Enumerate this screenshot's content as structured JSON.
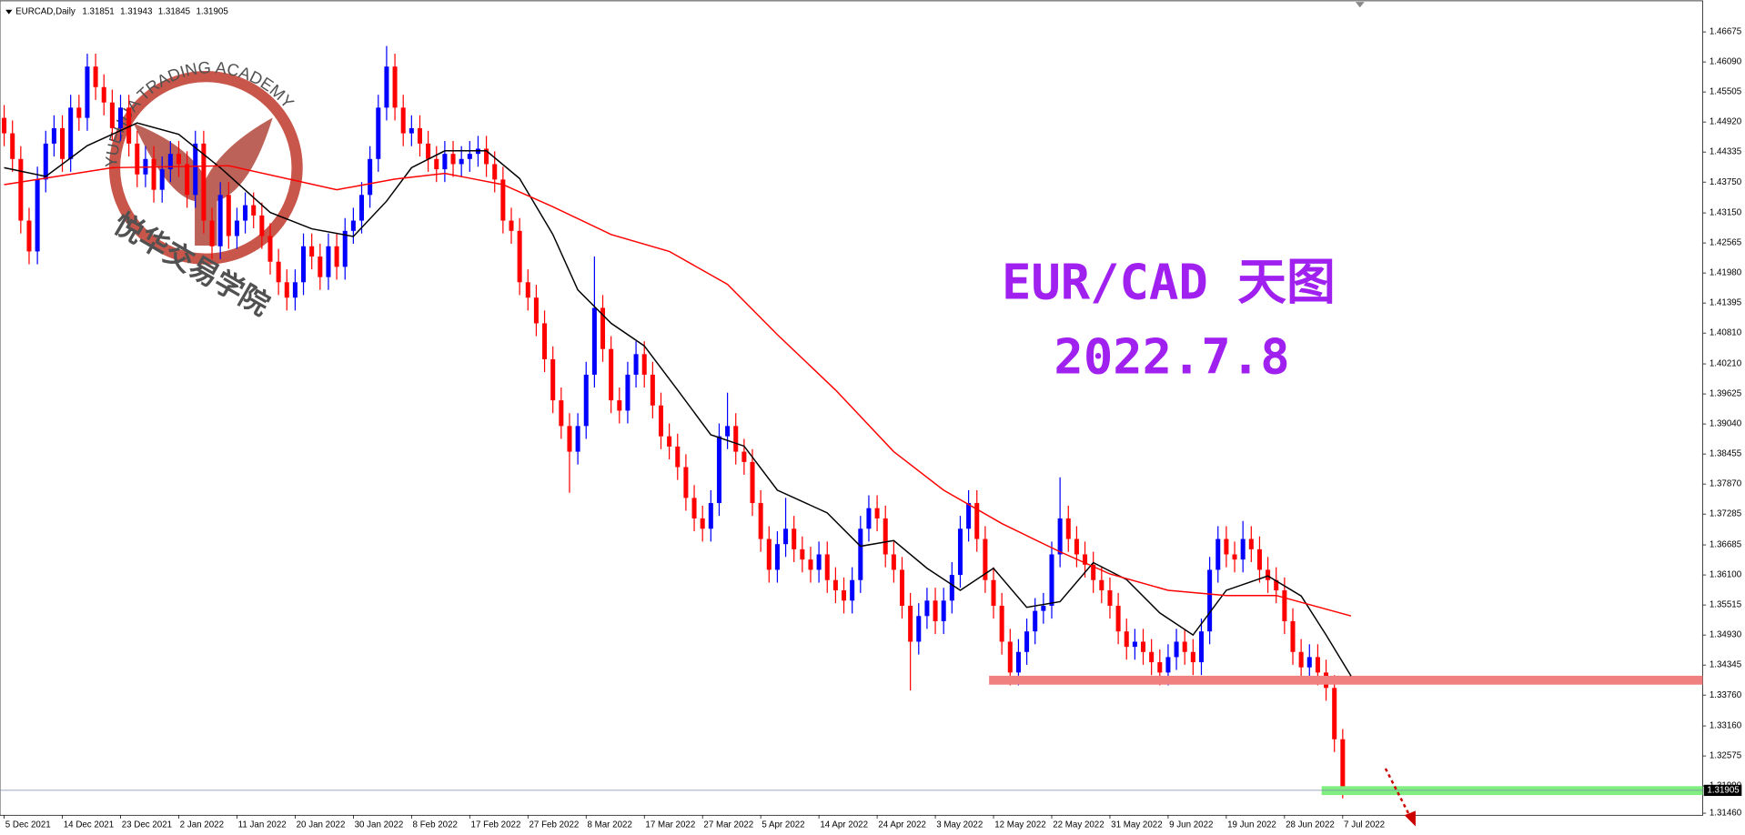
{
  "chart_data": {
    "type": "candlestick",
    "symbol": "EURCAD,Daily",
    "title": "EUR/CAD 天图",
    "subtitle": "2022.7.8",
    "watermark": {
      "text_top": "YUEHUA TRADING ACADEMY",
      "text_bottom": "悦华交易学院"
    },
    "up_color": "#0000ff",
    "down_color": "#ff0000",
    "xlim": [
      -0.5,
      204.3
    ],
    "ylim": [
      1.3142,
      1.4728
    ],
    "xticks": [
      {
        "value": 0,
        "label": "5 Dec 2021"
      },
      {
        "value": 7,
        "label": "14 Dec 2021"
      },
      {
        "value": 14,
        "label": "23 Dec 2021"
      },
      {
        "value": 21,
        "label": "2 Jan 2022"
      },
      {
        "value": 28,
        "label": "11 Jan 2022"
      },
      {
        "value": 35,
        "label": "20 Jan 2022"
      },
      {
        "value": 42,
        "label": "30 Jan 2022"
      },
      {
        "value": 49,
        "label": "8 Feb 2022"
      },
      {
        "value": 56,
        "label": "17 Feb 2022"
      },
      {
        "value": 63,
        "label": "27 Feb 2022"
      },
      {
        "value": 70,
        "label": "8 Mar 2022"
      },
      {
        "value": 77,
        "label": "17 Mar 2022"
      },
      {
        "value": 84,
        "label": "27 Mar 2022"
      },
      {
        "value": 91,
        "label": "5 Apr 2022"
      },
      {
        "value": 98,
        "label": "14 Apr 2022"
      },
      {
        "value": 105,
        "label": "24 Apr 2022"
      },
      {
        "value": 112,
        "label": "3 May 2022"
      },
      {
        "value": 119,
        "label": "12 May 2022"
      },
      {
        "value": 126,
        "label": "22 May 2022"
      },
      {
        "value": 133,
        "label": "31 May 2022"
      },
      {
        "value": 140,
        "label": "9 Jun 2022"
      },
      {
        "value": 147,
        "label": "19 Jun 2022"
      },
      {
        "value": 154,
        "label": "28 Jun 2022"
      },
      {
        "value": 161,
        "label": "7 Jul 2022"
      }
    ],
    "yticks": [
      {
        "value": 1.46675,
        "label": "1.46675"
      },
      {
        "value": 1.4609,
        "label": "1.46090"
      },
      {
        "value": 1.45505,
        "label": "1.45505"
      },
      {
        "value": 1.4492,
        "label": "1.44920"
      },
      {
        "value": 1.44335,
        "label": "1.44335"
      },
      {
        "value": 1.4375,
        "label": "1.43750"
      },
      {
        "value": 1.4315,
        "label": "1.43150"
      },
      {
        "value": 1.42565,
        "label": "1.42565"
      },
      {
        "value": 1.4198,
        "label": "1.41980"
      },
      {
        "value": 1.41395,
        "label": "1.41395"
      },
      {
        "value": 1.4081,
        "label": "1.40810"
      },
      {
        "value": 1.4021,
        "label": "1.40210"
      },
      {
        "value": 1.39625,
        "label": "1.39625"
      },
      {
        "value": 1.3904,
        "label": "1.39040"
      },
      {
        "value": 1.38455,
        "label": "1.38455"
      },
      {
        "value": 1.3787,
        "label": "1.37870"
      },
      {
        "value": 1.37285,
        "label": "1.37285"
      },
      {
        "value": 1.36685,
        "label": "1.36685"
      },
      {
        "value": 1.361,
        "label": "1.36100"
      },
      {
        "value": 1.35515,
        "label": "1.35515"
      },
      {
        "value": 1.3493,
        "label": "1.34930"
      },
      {
        "value": 1.34345,
        "label": "1.34345"
      },
      {
        "value": 1.3376,
        "label": "1.33760"
      },
      {
        "value": 1.3316,
        "label": "1.33160"
      },
      {
        "value": 1.32575,
        "label": "1.32575"
      },
      {
        "value": 1.3199,
        "label": "1.31990"
      },
      {
        "value": 1.3146,
        "label": "1.31460"
      }
    ],
    "candles": [
      [
        1.45,
        1.4525,
        1.4445,
        1.447
      ],
      [
        1.447,
        1.4495,
        1.4395,
        1.442
      ],
      [
        1.442,
        1.4445,
        1.4275,
        1.43
      ],
      [
        1.43,
        1.4325,
        1.4215,
        1.424
      ],
      [
        1.424,
        1.4405,
        1.4215,
        1.438
      ],
      [
        1.438,
        1.4475,
        1.4355,
        1.445
      ],
      [
        1.445,
        1.4505,
        1.4425,
        1.448
      ],
      [
        1.448,
        1.4505,
        1.4395,
        1.442
      ],
      [
        1.442,
        1.4545,
        1.4395,
        1.452
      ],
      [
        1.452,
        1.4545,
        1.4475,
        1.45
      ],
      [
        1.45,
        1.4625,
        1.4475,
        1.46
      ],
      [
        1.46,
        1.4625,
        1.4535,
        1.456
      ],
      [
        1.456,
        1.4585,
        1.4505,
        1.453
      ],
      [
        1.453,
        1.4555,
        1.4455,
        1.448
      ],
      [
        1.448,
        1.4545,
        1.4455,
        1.452
      ],
      [
        1.452,
        1.4545,
        1.4425,
        1.445
      ],
      [
        1.445,
        1.4475,
        1.4365,
        1.439
      ],
      [
        1.439,
        1.4445,
        1.4365,
        1.442
      ],
      [
        1.442,
        1.4445,
        1.4335,
        1.436
      ],
      [
        1.436,
        1.4425,
        1.4335,
        1.44
      ],
      [
        1.44,
        1.4455,
        1.4375,
        1.443
      ],
      [
        1.443,
        1.4455,
        1.4385,
        1.441
      ],
      [
        1.441,
        1.4435,
        1.4325,
        1.435
      ],
      [
        1.435,
        1.4475,
        1.4325,
        1.445
      ],
      [
        1.445,
        1.4475,
        1.4275,
        1.43
      ],
      [
        1.43,
        1.4325,
        1.4225,
        1.425
      ],
      [
        1.425,
        1.4375,
        1.4225,
        1.435
      ],
      [
        1.435,
        1.4375,
        1.4245,
        1.427
      ],
      [
        1.427,
        1.4325,
        1.4245,
        1.43
      ],
      [
        1.43,
        1.4355,
        1.4275,
        1.433
      ],
      [
        1.433,
        1.4355,
        1.4285,
        1.431
      ],
      [
        1.431,
        1.4335,
        1.4245,
        1.427
      ],
      [
        1.427,
        1.4295,
        1.4195,
        1.422
      ],
      [
        1.422,
        1.4245,
        1.4155,
        1.418
      ],
      [
        1.418,
        1.4205,
        1.4125,
        1.415
      ],
      [
        1.415,
        1.4205,
        1.4125,
        1.418
      ],
      [
        1.418,
        1.4275,
        1.4155,
        1.425
      ],
      [
        1.425,
        1.4275,
        1.4205,
        1.423
      ],
      [
        1.423,
        1.4255,
        1.4165,
        1.419
      ],
      [
        1.419,
        1.4275,
        1.4165,
        1.425
      ],
      [
        1.425,
        1.4275,
        1.4185,
        1.421
      ],
      [
        1.421,
        1.4305,
        1.4185,
        1.428
      ],
      [
        1.428,
        1.4325,
        1.4255,
        1.43
      ],
      [
        1.43,
        1.4375,
        1.4275,
        1.435
      ],
      [
        1.435,
        1.4445,
        1.4325,
        1.442
      ],
      [
        1.442,
        1.4545,
        1.4395,
        1.452
      ],
      [
        1.452,
        1.464,
        1.4495,
        1.46
      ],
      [
        1.46,
        1.4625,
        1.4495,
        1.452
      ],
      [
        1.452,
        1.4545,
        1.4445,
        1.447
      ],
      [
        1.447,
        1.4505,
        1.4445,
        1.448
      ],
      [
        1.448,
        1.4505,
        1.4425,
        1.445
      ],
      [
        1.445,
        1.4475,
        1.4395,
        1.442
      ],
      [
        1.442,
        1.4445,
        1.4375,
        1.44
      ],
      [
        1.44,
        1.4455,
        1.4375,
        1.443
      ],
      [
        1.443,
        1.4455,
        1.4385,
        1.441
      ],
      [
        1.441,
        1.4445,
        1.4385,
        1.442
      ],
      [
        1.442,
        1.4455,
        1.4395,
        1.443
      ],
      [
        1.443,
        1.4465,
        1.4405,
        1.444
      ],
      [
        1.444,
        1.4465,
        1.4385,
        1.441
      ],
      [
        1.441,
        1.4435,
        1.4355,
        1.438
      ],
      [
        1.438,
        1.4405,
        1.4275,
        1.43
      ],
      [
        1.43,
        1.4325,
        1.4255,
        1.428
      ],
      [
        1.428,
        1.4305,
        1.4155,
        1.418
      ],
      [
        1.418,
        1.4205,
        1.4125,
        1.415
      ],
      [
        1.415,
        1.4175,
        1.4075,
        1.41
      ],
      [
        1.41,
        1.4125,
        1.4005,
        1.403
      ],
      [
        1.403,
        1.4055,
        1.3925,
        1.395
      ],
      [
        1.395,
        1.3975,
        1.3875,
        1.39
      ],
      [
        1.39,
        1.3925,
        1.377,
        1.385
      ],
      [
        1.385,
        1.3925,
        1.3825,
        1.39
      ],
      [
        1.39,
        1.4025,
        1.3875,
        1.4
      ],
      [
        1.4,
        1.423,
        1.3975,
        1.413
      ],
      [
        1.413,
        1.4155,
        1.4025,
        1.405
      ],
      [
        1.405,
        1.4075,
        1.3925,
        1.395
      ],
      [
        1.395,
        1.3975,
        1.3905,
        1.393
      ],
      [
        1.393,
        1.4025,
        1.3905,
        1.4
      ],
      [
        1.4,
        1.4065,
        1.3975,
        1.404
      ],
      [
        1.404,
        1.4065,
        1.3975,
        1.4
      ],
      [
        1.4,
        1.4025,
        1.3915,
        1.394
      ],
      [
        1.394,
        1.3965,
        1.3855,
        1.388
      ],
      [
        1.388,
        1.3905,
        1.3835,
        1.386
      ],
      [
        1.386,
        1.3885,
        1.3795,
        1.382
      ],
      [
        1.382,
        1.3845,
        1.3735,
        1.376
      ],
      [
        1.376,
        1.3785,
        1.3695,
        1.372
      ],
      [
        1.372,
        1.3745,
        1.3675,
        1.37
      ],
      [
        1.37,
        1.3775,
        1.3675,
        1.375
      ],
      [
        1.375,
        1.3905,
        1.3725,
        1.388
      ],
      [
        1.388,
        1.3965,
        1.3855,
        1.39
      ],
      [
        1.39,
        1.3925,
        1.3825,
        1.385
      ],
      [
        1.385,
        1.3875,
        1.3805,
        1.383
      ],
      [
        1.383,
        1.3855,
        1.3725,
        1.375
      ],
      [
        1.375,
        1.3775,
        1.3655,
        1.368
      ],
      [
        1.368,
        1.3705,
        1.3595,
        1.362
      ],
      [
        1.362,
        1.3695,
        1.3595,
        1.367
      ],
      [
        1.367,
        1.376,
        1.3645,
        1.37
      ],
      [
        1.37,
        1.3725,
        1.3635,
        1.366
      ],
      [
        1.366,
        1.3685,
        1.3615,
        1.364
      ],
      [
        1.364,
        1.3665,
        1.3595,
        1.362
      ],
      [
        1.362,
        1.3675,
        1.3595,
        1.365
      ],
      [
        1.365,
        1.3675,
        1.3575,
        1.36
      ],
      [
        1.36,
        1.3625,
        1.3555,
        1.358
      ],
      [
        1.358,
        1.3605,
        1.3535,
        1.356
      ],
      [
        1.356,
        1.3625,
        1.3535,
        1.36
      ],
      [
        1.36,
        1.3725,
        1.3575,
        1.37
      ],
      [
        1.37,
        1.3765,
        1.3675,
        1.374
      ],
      [
        1.374,
        1.3765,
        1.3695,
        1.372
      ],
      [
        1.372,
        1.3745,
        1.3625,
        1.365
      ],
      [
        1.365,
        1.3675,
        1.3595,
        1.362
      ],
      [
        1.362,
        1.3645,
        1.3525,
        1.355
      ],
      [
        1.355,
        1.3575,
        1.3385,
        1.348
      ],
      [
        1.348,
        1.3555,
        1.3455,
        1.353
      ],
      [
        1.353,
        1.3585,
        1.3505,
        1.356
      ],
      [
        1.356,
        1.3585,
        1.3495,
        1.352
      ],
      [
        1.352,
        1.3585,
        1.3495,
        1.356
      ],
      [
        1.356,
        1.3635,
        1.3535,
        1.361
      ],
      [
        1.361,
        1.3725,
        1.3585,
        1.37
      ],
      [
        1.37,
        1.3775,
        1.3675,
        1.375
      ],
      [
        1.375,
        1.3775,
        1.3655,
        1.368
      ],
      [
        1.368,
        1.3705,
        1.3575,
        1.36
      ],
      [
        1.36,
        1.3625,
        1.3525,
        1.355
      ],
      [
        1.355,
        1.3575,
        1.3455,
        1.348
      ],
      [
        1.348,
        1.3505,
        1.3395,
        1.342
      ],
      [
        1.342,
        1.3485,
        1.3395,
        1.346
      ],
      [
        1.346,
        1.3525,
        1.3435,
        1.35
      ],
      [
        1.35,
        1.3565,
        1.3475,
        1.354
      ],
      [
        1.354,
        1.3575,
        1.3515,
        1.355
      ],
      [
        1.355,
        1.3675,
        1.3525,
        1.365
      ],
      [
        1.365,
        1.38,
        1.3625,
        1.372
      ],
      [
        1.372,
        1.3745,
        1.3655,
        1.368
      ],
      [
        1.368,
        1.3705,
        1.3625,
        1.365
      ],
      [
        1.365,
        1.3675,
        1.3605,
        1.363
      ],
      [
        1.363,
        1.3655,
        1.3575,
        1.36
      ],
      [
        1.36,
        1.3625,
        1.3555,
        1.358
      ],
      [
        1.358,
        1.3605,
        1.3525,
        1.355
      ],
      [
        1.355,
        1.3575,
        1.3475,
        1.35
      ],
      [
        1.35,
        1.3525,
        1.3445,
        1.347
      ],
      [
        1.347,
        1.3505,
        1.3445,
        1.348
      ],
      [
        1.348,
        1.3505,
        1.3435,
        1.346
      ],
      [
        1.346,
        1.3485,
        1.3415,
        1.344
      ],
      [
        1.344,
        1.3465,
        1.3395,
        1.342
      ],
      [
        1.342,
        1.3475,
        1.3395,
        1.345
      ],
      [
        1.345,
        1.3505,
        1.3425,
        1.348
      ],
      [
        1.348,
        1.3505,
        1.3435,
        1.346
      ],
      [
        1.346,
        1.3485,
        1.3415,
        1.344
      ],
      [
        1.344,
        1.3525,
        1.3415,
        1.35
      ],
      [
        1.35,
        1.3645,
        1.3475,
        1.362
      ],
      [
        1.362,
        1.3705,
        1.3595,
        1.368
      ],
      [
        1.368,
        1.3705,
        1.3625,
        1.365
      ],
      [
        1.365,
        1.3675,
        1.3615,
        1.364
      ],
      [
        1.364,
        1.3715,
        1.3615,
        1.368
      ],
      [
        1.368,
        1.3705,
        1.3635,
        1.366
      ],
      [
        1.366,
        1.3685,
        1.3595,
        1.362
      ],
      [
        1.362,
        1.3645,
        1.3575,
        1.36
      ],
      [
        1.36,
        1.3625,
        1.3555,
        1.358
      ],
      [
        1.358,
        1.3605,
        1.3495,
        1.352
      ],
      [
        1.352,
        1.3545,
        1.3435,
        1.346
      ],
      [
        1.346,
        1.3485,
        1.3405,
        1.343
      ],
      [
        1.343,
        1.3475,
        1.3405,
        1.345
      ],
      [
        1.345,
        1.3475,
        1.3395,
        1.342
      ],
      [
        1.342,
        1.3445,
        1.3365,
        1.339
      ],
      [
        1.339,
        1.3415,
        1.3265,
        1.329
      ],
      [
        1.329,
        1.331,
        1.3175,
        1.3185
      ],
      [
        1.31851,
        1.31943,
        1.31845,
        1.31905
      ]
    ],
    "series": [
      {
        "color": "#000000",
        "x": [
          0,
          5,
          10,
          16,
          21,
          26,
          32,
          37,
          42,
          46,
          49,
          53,
          58,
          62,
          66,
          69,
          73,
          77,
          81,
          85,
          89,
          93,
          99,
          103,
          107,
          111,
          115,
          119,
          123,
          127,
          131,
          135,
          139,
          143,
          147,
          152,
          156,
          159,
          162
        ],
        "values": [
          1.4403,
          1.4386,
          1.4446,
          1.449,
          1.4468,
          1.4403,
          1.4316,
          1.4284,
          1.4269,
          1.4338,
          1.4403,
          1.4436,
          1.4436,
          1.4382,
          1.4273,
          1.4165,
          1.41,
          1.4056,
          1.397,
          1.3883,
          1.3861,
          1.3775,
          1.3731,
          1.3666,
          1.3677,
          1.3623,
          1.358,
          1.3623,
          1.3547,
          1.3558,
          1.3634,
          1.3601,
          1.3536,
          1.3493,
          1.358,
          1.3608,
          1.3569,
          1.3493,
          1.3413
        ]
      },
      {
        "color": "#ff0000",
        "x": [
          0,
          13,
          27,
          40,
          47,
          53,
          60,
          66,
          73,
          80,
          87,
          93,
          100,
          107,
          113,
          120,
          127,
          133,
          140,
          147,
          153,
          162
        ],
        "values": [
          1.437,
          1.4403,
          1.4407,
          1.436,
          1.4381,
          1.4392,
          1.437,
          1.4327,
          1.4273,
          1.424,
          1.4176,
          1.4078,
          1.397,
          1.385,
          1.3775,
          1.371,
          1.3655,
          1.3612,
          1.358,
          1.357,
          1.357,
          1.353
        ]
      }
    ],
    "zones": [
      {
        "value": 1.3405,
        "from": 119,
        "color": "#f08080"
      },
      {
        "value": 1.319,
        "from": 159,
        "color": "#80ee80"
      }
    ]
  }
}
